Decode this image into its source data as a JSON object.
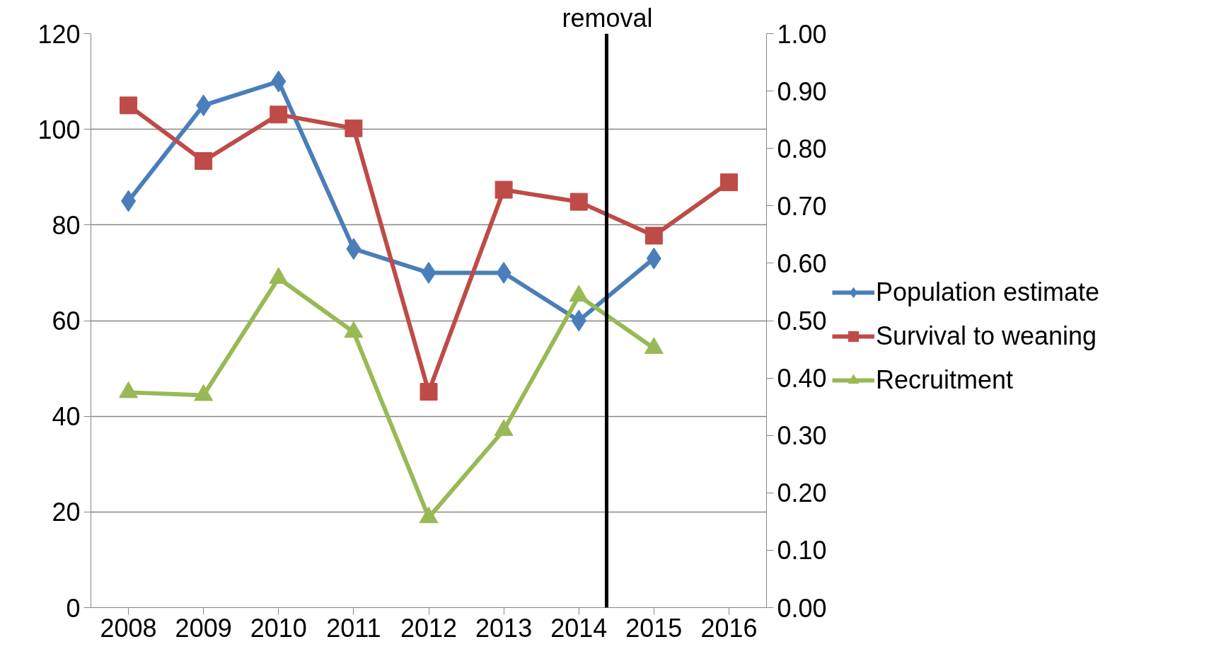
{
  "chart_data": {
    "type": "line",
    "x": [
      2008,
      2009,
      2010,
      2011,
      2012,
      2013,
      2014,
      2015,
      2016
    ],
    "xlim": [
      2007.5,
      2016.5
    ],
    "xticks": [
      2008,
      2009,
      2010,
      2011,
      2012,
      2013,
      2014,
      2015,
      2016
    ],
    "ylim": [
      0,
      120
    ],
    "yticks": [
      0,
      20,
      40,
      60,
      80,
      100,
      120
    ],
    "y2lim": [
      0,
      1
    ],
    "y2ticks": [
      {
        "value": 0,
        "label": "0.00"
      },
      {
        "value": 0.1,
        "label": "0.10"
      },
      {
        "value": 0.2,
        "label": "0.20"
      },
      {
        "value": 0.3,
        "label": "0.30"
      },
      {
        "value": 0.4,
        "label": "0.40"
      },
      {
        "value": 0.5,
        "label": "0.50"
      },
      {
        "value": 0.6,
        "label": "0.60"
      },
      {
        "value": 0.7,
        "label": "0.70"
      },
      {
        "value": 0.8,
        "label": "0.80"
      },
      {
        "value": 0.9,
        "label": "0.90"
      },
      {
        "value": 1,
        "label": "1.00"
      }
    ],
    "series": [
      {
        "name": "Population estimate",
        "color": "#4a7ebb",
        "marker": "diamond",
        "values": [
          85,
          105,
          110,
          75,
          70,
          70,
          60,
          73,
          null
        ]
      },
      {
        "name": "Survival to weaning",
        "color": "#be4b48",
        "marker": "square",
        "axis": "y2",
        "values": [
          0.875,
          0.778,
          0.859,
          0.835,
          0.376,
          0.728,
          0.707,
          0.648,
          0.741
        ]
      },
      {
        "name": "Recruitment",
        "color": "#98b954",
        "marker": "triangle",
        "axis": "y2",
        "values": [
          0.375,
          0.37,
          0.574,
          0.48,
          0.157,
          0.309,
          0.543,
          0.452,
          null
        ]
      }
    ],
    "ref_lines": [
      {
        "axis": "x",
        "value": 2014.37,
        "label": "removal",
        "color": "#000000"
      }
    ],
    "grid": "y",
    "legend": "right",
    "line_style": "solid"
  }
}
